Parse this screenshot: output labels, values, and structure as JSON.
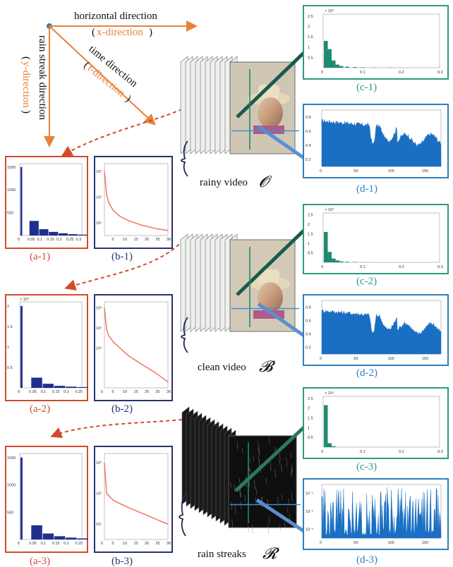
{
  "axes": {
    "horizontal": "horizontal direction",
    "x_dir": "x-direction",
    "time": "time direction",
    "t_dir": "t-direction",
    "rain": "rain streak direction",
    "y_dir": "y-direction"
  },
  "videos": [
    {
      "label": "rainy video",
      "symbol": "𝓞"
    },
    {
      "label": "clean video",
      "symbol": "𝓑"
    },
    {
      "label": "rain streaks",
      "symbol": "𝓡"
    }
  ],
  "captions": {
    "a": [
      "(a-1)",
      "(a-2)",
      "(a-3)"
    ],
    "b": [
      "(b-1)",
      "(b-2)",
      "(b-3)"
    ],
    "c": [
      "(c-1)",
      "(c-2)",
      "(c-3)"
    ],
    "d": [
      "(d-1)",
      "(d-2)",
      "(d-3)"
    ]
  },
  "colors": {
    "orange": "#e8823a",
    "red_frame": "#d24a2c",
    "navy_frame": "#27346e",
    "teal": "#1f8a72",
    "teal_frame": "#2d9a84",
    "blue_frame": "#2e7fc0",
    "hist_blue": "#1f2f8f",
    "curve_orange": "#ef8060",
    "signal_blue": "#1a6fc4"
  },
  "chart_data": [
    {
      "id": "a-1",
      "type": "bar",
      "x": [
        0,
        0.05,
        0.1,
        0.15,
        0.2,
        0.25,
        0.3
      ],
      "values": [
        1500,
        320,
        140,
        80,
        50,
        30,
        20
      ],
      "x_ticks": [
        "0",
        "0.05",
        "0.1",
        "0.15",
        "0.2",
        "0.25",
        "0.3"
      ],
      "y_ticks": [
        "500",
        "1000",
        "1500"
      ]
    },
    {
      "id": "a-2",
      "type": "bar",
      "x": [
        0,
        0.05,
        0.1,
        0.15,
        0.2,
        0.25
      ],
      "values": [
        2.0,
        0.25,
        0.1,
        0.05,
        0.03,
        0.02
      ],
      "x_ticks": [
        "0",
        "0.05",
        "0.1",
        "0.15",
        "0.2",
        "0.25"
      ],
      "y_ticks": [
        "0.5",
        "1",
        "1.5",
        "2"
      ],
      "multiplier": "× 10⁴"
    },
    {
      "id": "a-3",
      "type": "bar",
      "x": [
        0,
        0.05,
        0.1,
        0.15,
        0.2,
        0.25
      ],
      "values": [
        1500,
        260,
        110,
        60,
        35,
        20
      ],
      "x_ticks": [
        "0",
        "0.05",
        "0.1",
        "0.15",
        "0.2",
        "0.25"
      ],
      "y_ticks": [
        "500",
        "1000",
        "1500"
      ]
    },
    {
      "id": "b-1",
      "type": "line",
      "x": [
        1,
        2,
        3,
        5,
        8,
        12,
        18,
        24,
        30
      ],
      "values": [
        1000,
        120,
        60,
        30,
        18,
        12,
        8,
        6,
        5
      ],
      "x_ticks": [
        "5",
        "10",
        "15",
        "20",
        "25",
        "30"
      ],
      "y_ticks": [
        "10¹",
        "10²",
        "10³"
      ]
    },
    {
      "id": "b-2",
      "type": "line",
      "x": [
        1,
        2,
        3,
        5,
        8,
        12,
        18,
        24,
        30
      ],
      "values": [
        1000,
        80,
        40,
        20,
        10,
        4,
        1.5,
        0.6,
        0.2
      ],
      "x_ticks": [
        "0",
        "5",
        "10",
        "15",
        "20",
        "25",
        "30"
      ],
      "y_ticks": [
        "10¹",
        "10²",
        "10³"
      ]
    },
    {
      "id": "b-3",
      "type": "line",
      "x": [
        1,
        2,
        5,
        10,
        15,
        20,
        25,
        30
      ],
      "values": [
        1000,
        100,
        60,
        40,
        28,
        20,
        14,
        10
      ],
      "x_ticks": [
        "0",
        "5",
        "10",
        "15",
        "20",
        "25",
        "30"
      ],
      "y_ticks": [
        "10¹",
        "10²",
        "10³"
      ]
    },
    {
      "id": "c-1",
      "type": "bar",
      "x": [
        0.005,
        0.015,
        0.025,
        0.035,
        0.045,
        0.06,
        0.08,
        0.1,
        0.13,
        0.17,
        0.2
      ],
      "values": [
        1.3,
        0.9,
        0.35,
        0.15,
        0.08,
        0.05,
        0.03,
        0.02,
        0.01,
        0.01,
        0.005
      ],
      "x_ticks": [
        "0",
        "0.1",
        "0.2",
        "0.3"
      ],
      "y_ticks": [
        "0.5",
        "1",
        "1.5",
        "2",
        "2.5"
      ],
      "multiplier": "× 10⁴"
    },
    {
      "id": "c-2",
      "type": "bar",
      "x": [
        0.005,
        0.015,
        0.025,
        0.035,
        0.045,
        0.06,
        0.08,
        0.1,
        0.13
      ],
      "values": [
        1.6,
        0.55,
        0.2,
        0.1,
        0.05,
        0.03,
        0.02,
        0.01,
        0.005
      ],
      "x_ticks": [
        "0",
        "0.1",
        "0.2",
        "0.3"
      ],
      "y_ticks": [
        "0.5",
        "1",
        "1.5",
        "2",
        "2.5"
      ],
      "multiplier": "× 10⁴"
    },
    {
      "id": "c-3",
      "type": "bar",
      "x": [
        0.005,
        0.015,
        0.025
      ],
      "values": [
        2.15,
        0.2,
        0.05
      ],
      "x_ticks": [
        "0",
        "0.1",
        "0.2",
        "0.3"
      ],
      "y_ticks": [
        "0.5",
        "1",
        "1.5",
        "2",
        "2.5"
      ],
      "multiplier": "× 10⁴"
    },
    {
      "id": "d-1",
      "type": "area",
      "x_ticks": [
        "0",
        "50",
        "100",
        "150"
      ],
      "y_ticks": [
        "0.2",
        "0.4",
        "0.6",
        "0.8"
      ],
      "xlim": [
        0,
        175
      ],
      "ylim": [
        0.15,
        0.85
      ]
    },
    {
      "id": "d-2",
      "type": "area",
      "x_ticks": [
        "0",
        "50",
        "100",
        "150"
      ],
      "y_ticks": [
        "0.2",
        "0.4",
        "0.6",
        "0.8"
      ],
      "xlim": [
        0,
        175
      ],
      "ylim": [
        0.15,
        0.85
      ]
    },
    {
      "id": "d-3",
      "type": "area",
      "x_ticks": [
        "0",
        "50",
        "100",
        "150"
      ],
      "y_ticks": [
        "10⁻³",
        "10⁻²",
        "10⁻¹"
      ],
      "xlim": [
        0,
        175
      ]
    }
  ]
}
